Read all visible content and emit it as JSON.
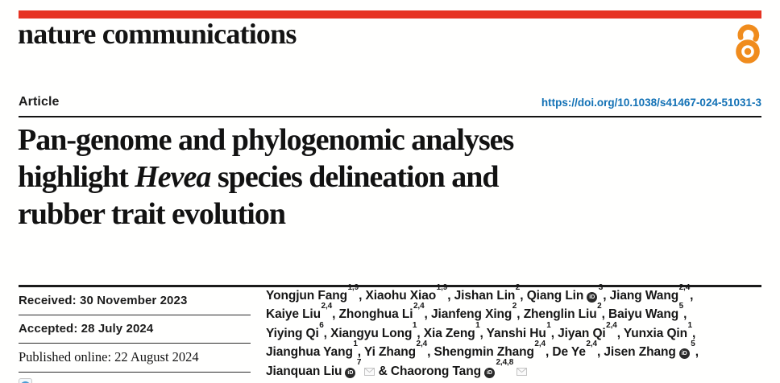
{
  "brand": {
    "wordmark": "nature communications"
  },
  "icons": {
    "open_access": "open-access-lock-icon",
    "orcid": "orcid-icon",
    "email": "email-envelope-icon",
    "check_updates": "check-for-updates-icon"
  },
  "colors": {
    "brand_red": "#e63323",
    "open_access_orange": "#f08c1d",
    "doi_blue": "#1271b5",
    "text": "#1a1a1a",
    "rule_dark": "#1b1b1b",
    "envelope_gray": "#c3c3c3"
  },
  "article": {
    "label": "Article",
    "doi": "https://doi.org/10.1038/s41467-024-51031-3"
  },
  "title": {
    "line1": "Pan-genome and phylogenomic analyses",
    "line2_pre": "highlight ",
    "line2_italic": "Hevea",
    "line2_post": " species delineation and",
    "line3": "rubber trait evolution"
  },
  "dates": [
    {
      "label": "Received: 30 November 2023"
    },
    {
      "label": "Accepted: 28 July 2024"
    },
    {
      "label": "Published online: 22 August 2024"
    }
  ],
  "authors": {
    "lines": [
      [
        {
          "name": "Yongjun Fang",
          "sup": "1,9",
          "trail": ", "
        },
        {
          "name": "Xiaohu Xiao",
          "sup": "1,9",
          "trail": ", "
        },
        {
          "name": "Jishan Lin",
          "sup": "2",
          "trail": ", "
        },
        {
          "name": "Qiang Lin",
          "orcid": true,
          "sup": "3",
          "trail": ", "
        },
        {
          "name": "Jiang Wang",
          "sup": "2,4",
          "trail": ","
        }
      ],
      [
        {
          "name": "Kaiye Liu",
          "sup": "2,4",
          "trail": ", "
        },
        {
          "name": "Zhonghua Li",
          "sup": "2,4",
          "trail": ", "
        },
        {
          "name": "Jianfeng Xing",
          "sup": "2",
          "trail": ", "
        },
        {
          "name": "Zhenglin Liu",
          "sup": "2",
          "trail": ", "
        },
        {
          "name": "Baiyu Wang",
          "sup": "5",
          "trail": ","
        }
      ],
      [
        {
          "name": "Yiying Qi",
          "sup": "6",
          "trail": ", "
        },
        {
          "name": "Xiangyu Long",
          "sup": "1",
          "trail": ", "
        },
        {
          "name": "Xia Zeng",
          "sup": "1",
          "trail": ", "
        },
        {
          "name": "Yanshi Hu",
          "sup": "1",
          "trail": ", "
        },
        {
          "name": "Jiyan Qi",
          "sup": "2,4",
          "trail": ", "
        },
        {
          "name": "Yunxia Qin",
          "sup": "1",
          "trail": ","
        }
      ],
      [
        {
          "name": "Jianghua Yang",
          "sup": "1",
          "trail": ", "
        },
        {
          "name": "Yi Zhang",
          "sup": "2,4",
          "trail": ", "
        },
        {
          "name": "Shengmin Zhang",
          "sup": "2,4",
          "trail": ", "
        },
        {
          "name": "De Ye",
          "sup": "2,4",
          "trail": ", "
        },
        {
          "name": "Jisen Zhang",
          "orcid": true,
          "sup": "5",
          "trail": ","
        }
      ],
      [
        {
          "name": "Jianquan Liu",
          "orcid": true,
          "sup": "7",
          "env": true,
          "trail": " & "
        },
        {
          "name": "Chaorong Tang",
          "orcid": true,
          "sup": "2,4,8",
          "env": true,
          "trail": ""
        }
      ]
    ]
  }
}
